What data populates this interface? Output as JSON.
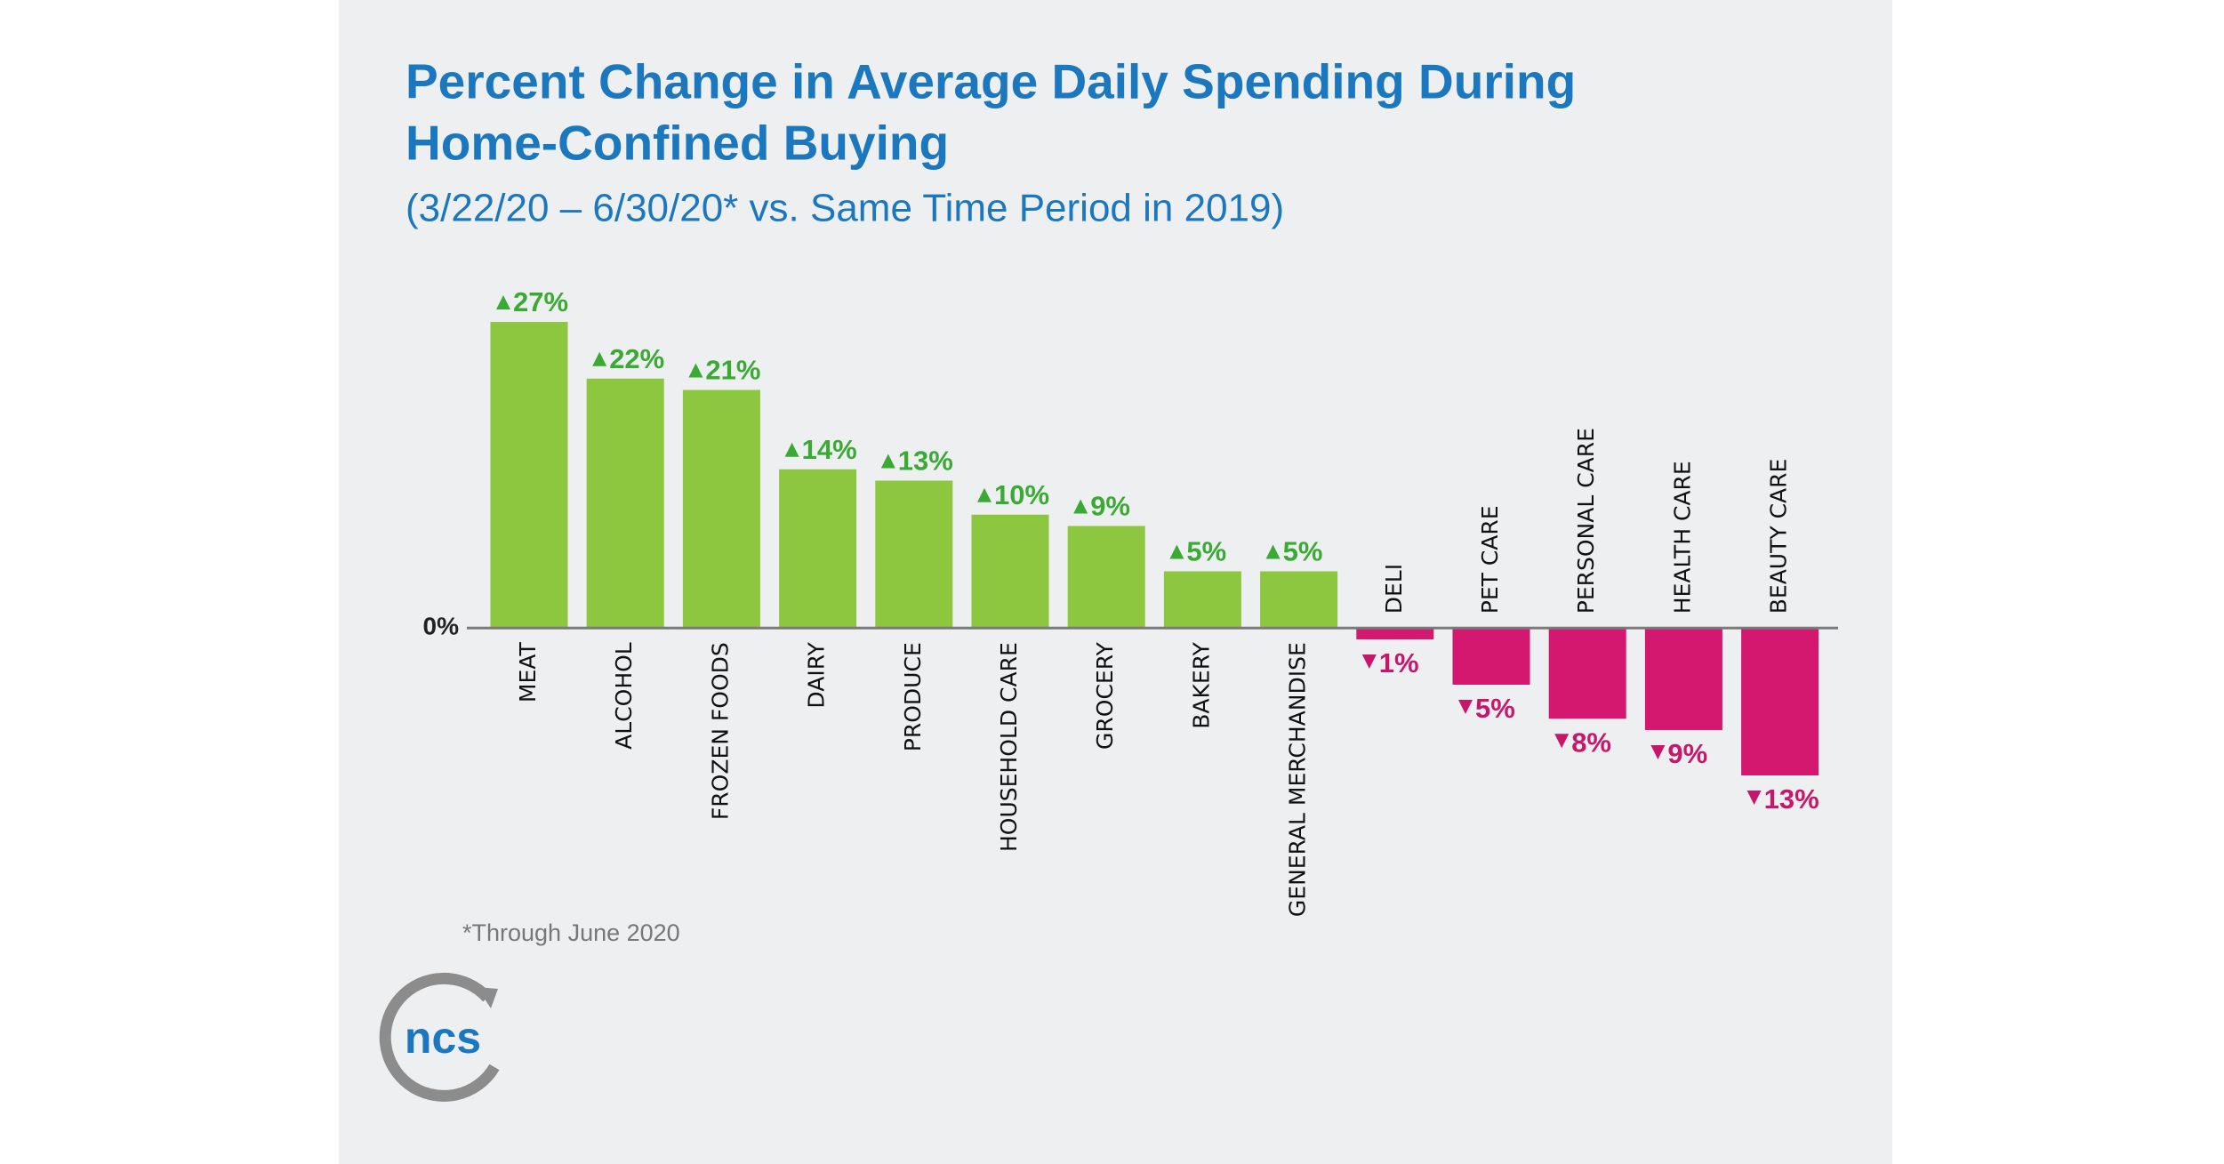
{
  "chart_data": {
    "type": "bar",
    "title": [
      "Percent Change in Average Daily Spending During",
      "Home-Confined Buying"
    ],
    "subtitle": "(3/22/20 – 6/30/20* vs. Same Time Period in 2019)",
    "categories": [
      "MEAT",
      "ALCOHOL",
      "FROZEN FOODS",
      "DAIRY",
      "PRODUCE",
      "HOUSEHOLD CARE",
      "GROCERY",
      "BAKERY",
      "GENERAL MERCHANDISE",
      "DELI",
      "PET CARE",
      "PERSONAL CARE",
      "HEALTH CARE",
      "BEAUTY CARE"
    ],
    "values": [
      27,
      22,
      21,
      14,
      13,
      10,
      9,
      5,
      5,
      -1,
      -5,
      -8,
      -9,
      -13
    ],
    "value_labels": [
      "27%",
      "22%",
      "21%",
      "14%",
      "13%",
      "10%",
      "9%",
      "5%",
      "5%",
      "1%",
      "5%",
      "8%",
      "9%",
      "13%"
    ],
    "colors": {
      "positive": "#8dc63f",
      "negative": "#d4176f",
      "positive_label": "#3aaa35",
      "negative_label": "#c8176b"
    },
    "ylim": [
      -13,
      27
    ],
    "yticks": [
      {
        "value": 0,
        "label": "0%"
      }
    ],
    "footnote": "*Through June 2020",
    "logo": "ncs"
  }
}
